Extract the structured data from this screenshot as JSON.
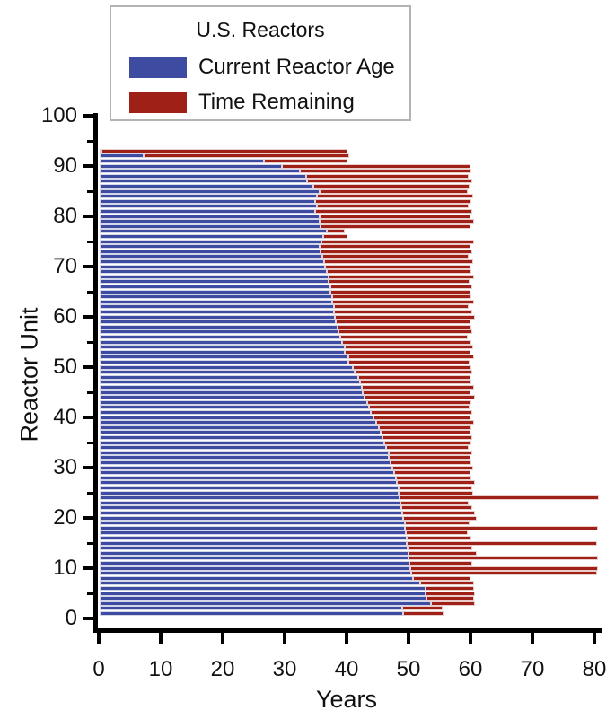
{
  "chart_data": {
    "type": "bar",
    "orientation": "horizontal-stacked",
    "legend_title": "U.S. Reactors",
    "series": [
      {
        "name": "Current Reactor Age",
        "color": "#3d4ba0"
      },
      {
        "name": "Time Remaining",
        "color": "#9e2017"
      }
    ],
    "xlabel": "Years",
    "ylabel": "Reactor Unit",
    "xlim": [
      0,
      80
    ],
    "ylim": [
      0,
      100
    ],
    "x_ticks": [
      0,
      10,
      20,
      30,
      40,
      50,
      60,
      70,
      80
    ],
    "y_ticks_major": [
      0,
      10,
      20,
      30,
      40,
      50,
      60,
      70,
      80,
      90,
      100
    ],
    "y_ticks_minor": [
      5,
      15,
      25,
      35,
      45,
      55,
      65,
      75,
      85,
      95
    ],
    "grid": false,
    "legend_position": "top-center",
    "units_note": "each entry is [reactor_unit, current_age_years, total_licensed_years]; time_remaining = total - age",
    "units": [
      [
        1,
        49.0,
        55.5
      ],
      [
        2,
        48.8,
        55.3
      ],
      [
        3,
        53.4,
        60.6
      ],
      [
        4,
        52.8,
        60.4
      ],
      [
        5,
        52.6,
        60.6
      ],
      [
        6,
        52.6,
        60.4
      ],
      [
        7,
        51.7,
        60.4
      ],
      [
        8,
        50.5,
        59.9
      ],
      [
        9,
        50.3,
        80.3
      ],
      [
        10,
        50.2,
        80.4
      ],
      [
        11,
        50.0,
        60.2
      ],
      [
        12,
        49.9,
        80.5
      ],
      [
        13,
        49.8,
        60.9
      ],
      [
        14,
        49.7,
        60.2
      ],
      [
        15,
        49.6,
        80.3
      ],
      [
        16,
        49.5,
        60.0
      ],
      [
        17,
        49.4,
        59.4
      ],
      [
        18,
        49.3,
        80.5
      ],
      [
        19,
        49.2,
        59.7
      ],
      [
        20,
        49.0,
        60.9
      ],
      [
        21,
        48.9,
        60.6
      ],
      [
        22,
        48.7,
        60.2
      ],
      [
        23,
        48.5,
        59.5
      ],
      [
        24,
        48.4,
        80.5
      ],
      [
        25,
        48.3,
        60.3
      ],
      [
        26,
        48.2,
        60.2
      ],
      [
        27,
        48.0,
        60.6
      ],
      [
        28,
        47.8,
        60.0
      ],
      [
        29,
        47.5,
        59.8
      ],
      [
        30,
        47.2,
        60.3
      ],
      [
        31,
        46.9,
        60.0
      ],
      [
        32,
        46.7,
        59.9
      ],
      [
        33,
        46.6,
        60.1
      ],
      [
        34,
        46.2,
        59.6
      ],
      [
        35,
        45.9,
        60.0
      ],
      [
        36,
        45.6,
        60.2
      ],
      [
        37,
        45.3,
        59.8
      ],
      [
        38,
        45.0,
        60.0
      ],
      [
        39,
        44.6,
        60.5
      ],
      [
        40,
        44.2,
        59.9
      ],
      [
        41,
        43.7,
        60.1
      ],
      [
        42,
        43.5,
        59.7
      ],
      [
        43,
        43.2,
        60.0
      ],
      [
        44,
        42.8,
        60.6
      ],
      [
        45,
        42.5,
        59.9
      ],
      [
        46,
        42.3,
        60.4
      ],
      [
        47,
        42.0,
        60.0
      ],
      [
        48,
        41.7,
        59.8
      ],
      [
        49,
        41.2,
        60.2
      ],
      [
        50,
        40.8,
        60.0
      ],
      [
        51,
        40.1,
        59.7
      ],
      [
        52,
        40.1,
        60.5
      ],
      [
        53,
        39.6,
        59.9
      ],
      [
        54,
        39.6,
        60.3
      ],
      [
        55,
        39.1,
        60.0
      ],
      [
        56,
        38.9,
        59.5
      ],
      [
        57,
        38.6,
        60.2
      ],
      [
        58,
        38.4,
        60.0
      ],
      [
        59,
        38.1,
        59.8
      ],
      [
        60,
        38.0,
        60.6
      ],
      [
        61,
        37.8,
        60.1
      ],
      [
        62,
        37.8,
        59.6
      ],
      [
        63,
        37.6,
        60.4
      ],
      [
        64,
        37.5,
        60.0
      ],
      [
        65,
        37.3,
        59.9
      ],
      [
        66,
        37.3,
        60.2
      ],
      [
        67,
        37.0,
        59.7
      ],
      [
        68,
        36.9,
        60.5
      ],
      [
        69,
        36.7,
        60.0
      ],
      [
        70,
        36.4,
        59.8
      ],
      [
        71,
        36.2,
        60.3
      ],
      [
        72,
        36.0,
        59.6
      ],
      [
        73,
        35.7,
        60.1
      ],
      [
        74,
        35.5,
        59.9
      ],
      [
        75,
        35.8,
        60.4
      ],
      [
        76,
        36.1,
        40.0
      ],
      [
        77,
        36.7,
        39.6
      ],
      [
        78,
        35.6,
        59.8
      ],
      [
        79,
        35.5,
        60.4
      ],
      [
        80,
        35.5,
        59.9
      ],
      [
        81,
        34.8,
        60.1
      ],
      [
        82,
        35.1,
        59.6
      ],
      [
        83,
        34.8,
        60.0
      ],
      [
        84,
        35.0,
        60.3
      ],
      [
        85,
        35.5,
        59.4
      ],
      [
        86,
        34.5,
        59.7
      ],
      [
        87,
        33.4,
        60.2
      ],
      [
        88,
        33.3,
        59.5
      ],
      [
        89,
        32.3,
        60.0
      ],
      [
        90,
        29.4,
        59.9
      ],
      [
        91,
        26.5,
        40.0
      ],
      [
        92,
        7.1,
        40.3
      ],
      [
        93,
        0.3,
        40.0
      ]
    ]
  }
}
